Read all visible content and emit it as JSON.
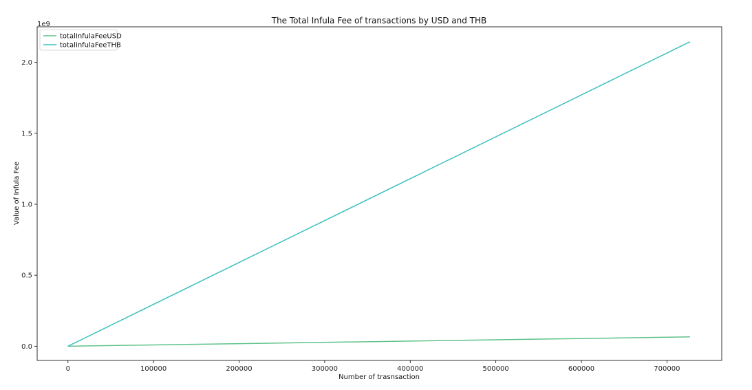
{
  "chart_data": {
    "type": "line",
    "title": "The Total Infula Fee of transactions by USD and THB",
    "xlabel": "Number of trasnsaction",
    "ylabel": "Value of Infula Fee",
    "y_offset_label": "1e9",
    "xlim": [
      -36000,
      764000
    ],
    "ylim": [
      -0.1,
      2.25
    ],
    "x_ticks": [
      0,
      100000,
      200000,
      300000,
      400000,
      500000,
      600000,
      700000
    ],
    "x_tick_labels": [
      "0",
      "100000",
      "200000",
      "300000",
      "400000",
      "500000",
      "600000",
      "700000"
    ],
    "y_ticks": [
      0.0,
      0.5,
      1.0,
      1.5,
      2.0
    ],
    "y_tick_labels": [
      "0.0",
      "0.5",
      "1.0",
      "1.5",
      "2.0"
    ],
    "grid": false,
    "legend_position": "top-left",
    "series": [
      {
        "name": "totalInfulaFeeUSD",
        "color": "#5ec28a",
        "x": [
          0,
          727000
        ],
        "y": [
          0.0,
          0.066
        ]
      },
      {
        "name": "totalInfulaFeeTHB",
        "color": "#3dbfbf",
        "x": [
          0,
          727000
        ],
        "y": [
          0.0,
          2.145
        ]
      }
    ]
  }
}
